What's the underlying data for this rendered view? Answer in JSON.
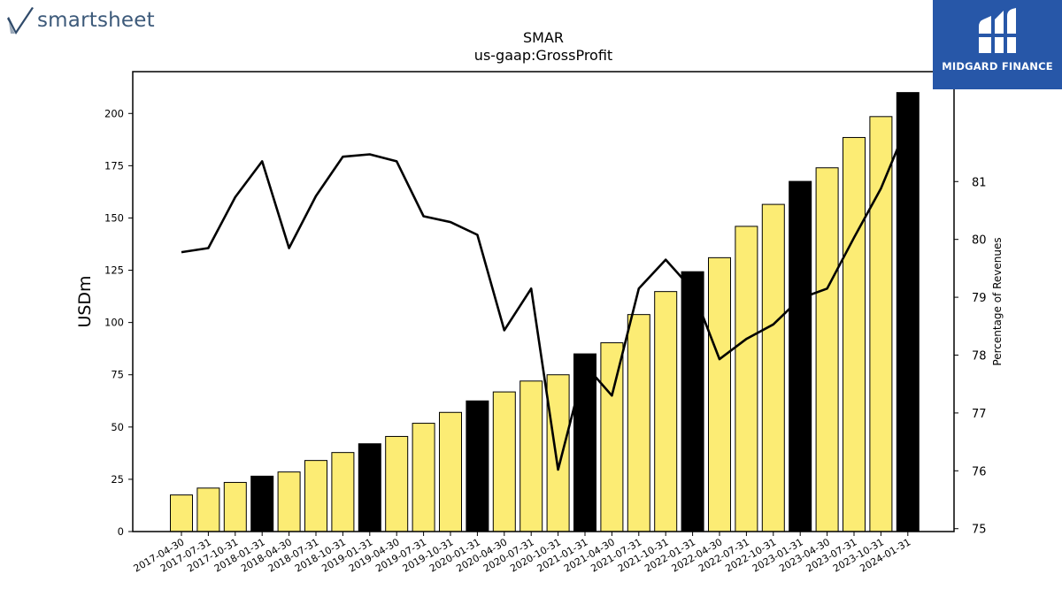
{
  "branding": {
    "left_logo_text": "smartsheet",
    "left_logo_icon": "checkmark-icon",
    "right_logo_text": "MIDGARD FINANCE",
    "right_logo_icon": "midgard-monogram-icon",
    "right_logo_bg": "#2757a8"
  },
  "chart_data": {
    "type": "bar",
    "title": "SMAR",
    "subtitle": "us-gaap:GrossProfit",
    "ylabel": "USDm",
    "y2label": "Percentage of Revenues",
    "ylim": [
      0,
      220
    ],
    "y2lim": [
      74.95,
      82.9
    ],
    "yticks": [
      0,
      25,
      50,
      75,
      100,
      125,
      150,
      175,
      200
    ],
    "y2ticks": [
      75,
      76,
      77,
      78,
      79,
      80,
      81
    ],
    "categories": [
      "2017-04-30",
      "2017-07-31",
      "2017-10-31",
      "2018-01-31",
      "2018-04-30",
      "2018-07-31",
      "2018-10-31",
      "2019-01-31",
      "2019-04-30",
      "2019-07-31",
      "2019-10-31",
      "2020-01-31",
      "2020-04-30",
      "2020-07-31",
      "2020-10-31",
      "2021-01-31",
      "2021-04-30",
      "2021-07-31",
      "2021-10-31",
      "2022-01-31",
      "2022-04-30",
      "2022-07-31",
      "2022-10-31",
      "2023-01-31",
      "2023-04-30",
      "2023-07-31",
      "2023-10-31",
      "2024-01-31"
    ],
    "series": [
      {
        "kind": "bar",
        "values": [
          17.5,
          20.8,
          23.5,
          26.5,
          28.5,
          34.0,
          37.8,
          42.0,
          45.5,
          51.8,
          57.0,
          62.5,
          66.8,
          72.0,
          75.0,
          85.0,
          90.3,
          103.8,
          114.8,
          124.3,
          131.0,
          146.0,
          156.5,
          167.5,
          174.0,
          188.5,
          198.5,
          210.0
        ],
        "highlight": [
          false,
          false,
          false,
          true,
          false,
          false,
          false,
          true,
          false,
          false,
          false,
          true,
          false,
          false,
          false,
          true,
          false,
          false,
          false,
          true,
          false,
          false,
          false,
          true,
          false,
          false,
          false,
          true
        ],
        "color": "#fcec74",
        "highlight_color": "#000000"
      },
      {
        "kind": "line",
        "axis": "right",
        "values": [
          79.78,
          79.85,
          80.73,
          81.35,
          79.85,
          80.75,
          81.43,
          81.47,
          81.35,
          80.4,
          80.3,
          80.08,
          78.43,
          79.15,
          76.02,
          77.83,
          77.3,
          79.15,
          79.65,
          79.13,
          77.93,
          78.28,
          78.53,
          78.98,
          79.15,
          80.03,
          80.88,
          82.0
        ],
        "color": "#000000"
      }
    ],
    "grid": false,
    "legend": "none"
  }
}
